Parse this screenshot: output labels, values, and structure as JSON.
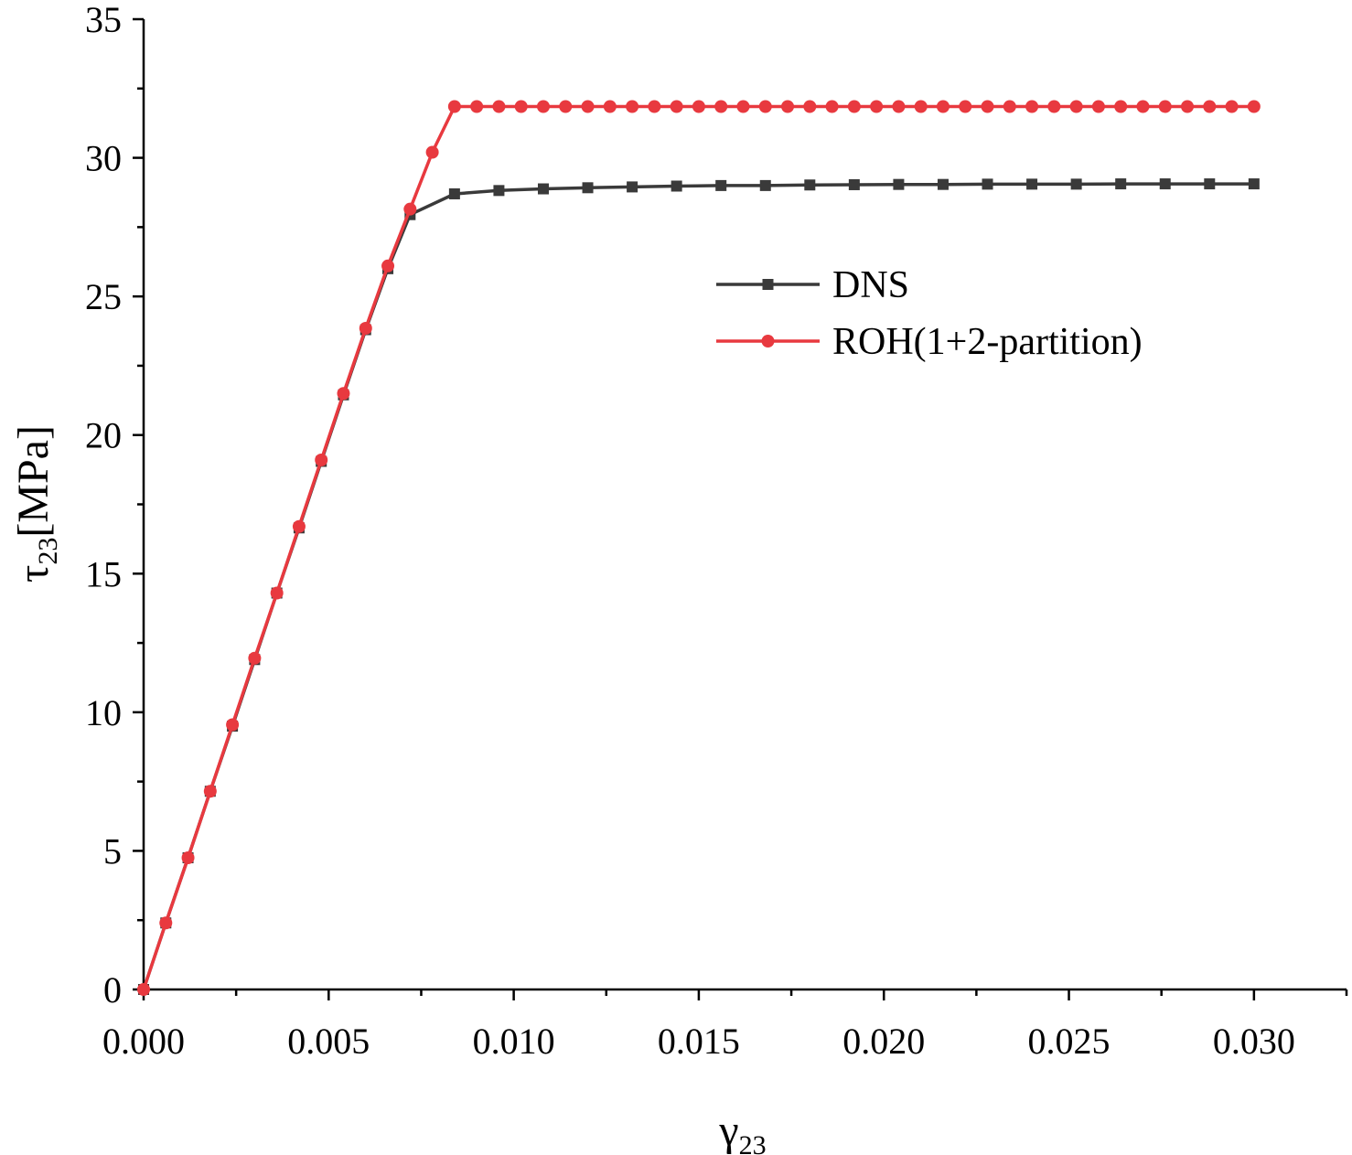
{
  "chart_data": {
    "type": "line",
    "title": "",
    "xlabel": {
      "main": "γ",
      "sub": "23"
    },
    "ylabel": {
      "main": "τ",
      "sub": "23",
      "suffix": "[MPa]"
    },
    "xlim": [
      0,
      0.0325
    ],
    "ylim": [
      0,
      35
    ],
    "x_ticks": [
      0,
      0.005,
      0.01,
      0.015,
      0.02,
      0.025,
      0.03
    ],
    "x_tick_labels": [
      "0.000",
      "0.005",
      "0.010",
      "0.015",
      "0.020",
      "0.025",
      "0.030"
    ],
    "y_ticks": [
      0,
      5,
      10,
      15,
      20,
      25,
      30,
      35
    ],
    "y_tick_labels": [
      "0",
      "5",
      "10",
      "15",
      "20",
      "25",
      "30",
      "35"
    ],
    "grid": false,
    "legend_position": "upper-right",
    "series": [
      {
        "name": "DNS",
        "color": "#3a3a3a",
        "marker": "square",
        "x": [
          0,
          0.0006,
          0.0012,
          0.0018,
          0.0024,
          0.003,
          0.0036,
          0.0042,
          0.0048,
          0.0054,
          0.006,
          0.0066,
          0.0072,
          0.0084,
          0.0096,
          0.0108,
          0.012,
          0.0132,
          0.0144,
          0.0156,
          0.0168,
          0.018,
          0.0192,
          0.0204,
          0.0216,
          0.0228,
          0.024,
          0.0252,
          0.0264,
          0.0276,
          0.0288,
          0.03
        ],
        "y": [
          0,
          2.4,
          4.75,
          7.15,
          9.5,
          11.9,
          14.3,
          16.65,
          19.05,
          21.45,
          23.8,
          26.0,
          27.95,
          28.7,
          28.82,
          28.88,
          28.92,
          28.95,
          28.98,
          29.0,
          29.0,
          29.02,
          29.03,
          29.04,
          29.04,
          29.05,
          29.05,
          29.05,
          29.06,
          29.06,
          29.06,
          29.06
        ]
      },
      {
        "name": "ROH(1+2-partition)",
        "color": "#e8393f",
        "marker": "circle",
        "x": [
          0,
          0.0006,
          0.0012,
          0.0018,
          0.0024,
          0.003,
          0.0036,
          0.0042,
          0.0048,
          0.0054,
          0.006,
          0.0066,
          0.0072,
          0.0078,
          0.0084,
          0.009,
          0.0096,
          0.0102,
          0.0108,
          0.0114,
          0.012,
          0.0126,
          0.0132,
          0.0138,
          0.0144,
          0.015,
          0.0156,
          0.0162,
          0.0168,
          0.0174,
          0.018,
          0.0186,
          0.0192,
          0.0198,
          0.0204,
          0.021,
          0.0216,
          0.0222,
          0.0228,
          0.0234,
          0.024,
          0.0246,
          0.0252,
          0.0258,
          0.0264,
          0.027,
          0.0276,
          0.0282,
          0.0288,
          0.0294,
          0.03
        ],
        "y": [
          0,
          2.4,
          4.75,
          7.15,
          9.55,
          11.95,
          14.3,
          16.7,
          19.1,
          21.5,
          23.85,
          26.1,
          28.15,
          30.2,
          31.85,
          31.85,
          31.85,
          31.85,
          31.85,
          31.85,
          31.85,
          31.85,
          31.85,
          31.85,
          31.85,
          31.85,
          31.85,
          31.85,
          31.85,
          31.85,
          31.85,
          31.85,
          31.85,
          31.85,
          31.85,
          31.85,
          31.85,
          31.85,
          31.85,
          31.85,
          31.85,
          31.85,
          31.85,
          31.85,
          31.85,
          31.85,
          31.85,
          31.85,
          31.85,
          31.85,
          31.85
        ]
      }
    ]
  }
}
